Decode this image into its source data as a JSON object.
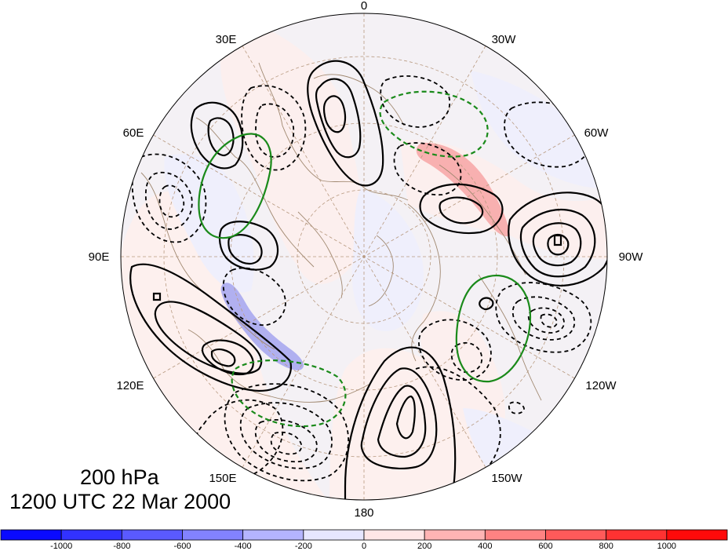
{
  "caption": {
    "level": "200 hPa",
    "datetime": "1200 UTC 22 Mar 2000"
  },
  "longitude_labels": {
    "lon_0": "0",
    "lon_30w": "30W",
    "lon_60w": "60W",
    "lon_90w": "90W",
    "lon_120w": "120W",
    "lon_150w": "150W",
    "lon_180": "180",
    "lon_150e": "150E",
    "lon_120e": "120E",
    "lon_90e": "90E",
    "lon_60e": "60E",
    "lon_30e": "30E"
  },
  "colorbar": {
    "colors": [
      "#0a0aff",
      "#3232ff",
      "#5a5aff",
      "#8282ff",
      "#b4b4ff",
      "#e6e6ff",
      "#ffe6e6",
      "#ffb4b4",
      "#ff8282",
      "#ff5a5a",
      "#ff3232",
      "#ff0a0a"
    ],
    "labels": [
      "-1000",
      "-800",
      "-600",
      "-400",
      "-200",
      "0",
      "200",
      "400",
      "600",
      "800",
      "1000"
    ]
  },
  "map_colors": {
    "disk_background": "#f2efee",
    "positive_shade": "#fdf0ee",
    "negative_shade": "#efeffc",
    "strong_positive": "#f7a8a8",
    "strong_negative": "#a9a9f0",
    "positive_contour": "#000000",
    "negative_contour": "#000000",
    "green_contour": "#1a8a1a",
    "coastline": "#a08870",
    "graticule": "#b89a80"
  }
}
